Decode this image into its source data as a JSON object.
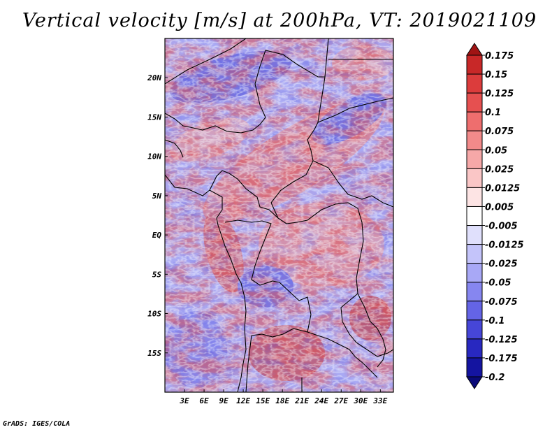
{
  "title": "Vertical velocity [m/s] at 200hPa, VT: 2019021109",
  "credit": "GrADS: IGES/COLA",
  "map": {
    "lon_range": [
      0,
      35
    ],
    "lat_range": [
      -20,
      25
    ],
    "x_ticks": [
      "3E",
      "6E",
      "9E",
      "12E",
      "15E",
      "18E",
      "21E",
      "24E",
      "27E",
      "30E",
      "33E"
    ],
    "x_tick_values": [
      3,
      6,
      9,
      12,
      15,
      18,
      21,
      24,
      27,
      30,
      33
    ],
    "y_ticks": [
      "20N",
      "15N",
      "10N",
      "5N",
      "EQ",
      "5S",
      "10S",
      "15S"
    ],
    "y_tick_values": [
      20,
      15,
      10,
      5,
      0,
      -5,
      -10,
      -15
    ]
  },
  "colorbar": {
    "levels": [
      "0.175",
      "0.15",
      "0.125",
      "0.1",
      "0.075",
      "0.05",
      "0.025",
      "0.0125",
      "0.005",
      "-0.005",
      "-0.0125",
      "-0.025",
      "-0.05",
      "-0.075",
      "-0.1",
      "-0.125",
      "-0.175",
      "-0.2"
    ],
    "colors": [
      "#a01414",
      "#c82828",
      "#dc3c3c",
      "#e65050",
      "#ee6e6e",
      "#f28a8a",
      "#f6a8a8",
      "#fac6c6",
      "#fde4e4",
      "#ffffff",
      "#e0e0fc",
      "#c4c4fa",
      "#a8a8f6",
      "#8686f0",
      "#6464e6",
      "#4646d8",
      "#2828c0",
      "#1414a0",
      "#0a0a78"
    ]
  }
}
